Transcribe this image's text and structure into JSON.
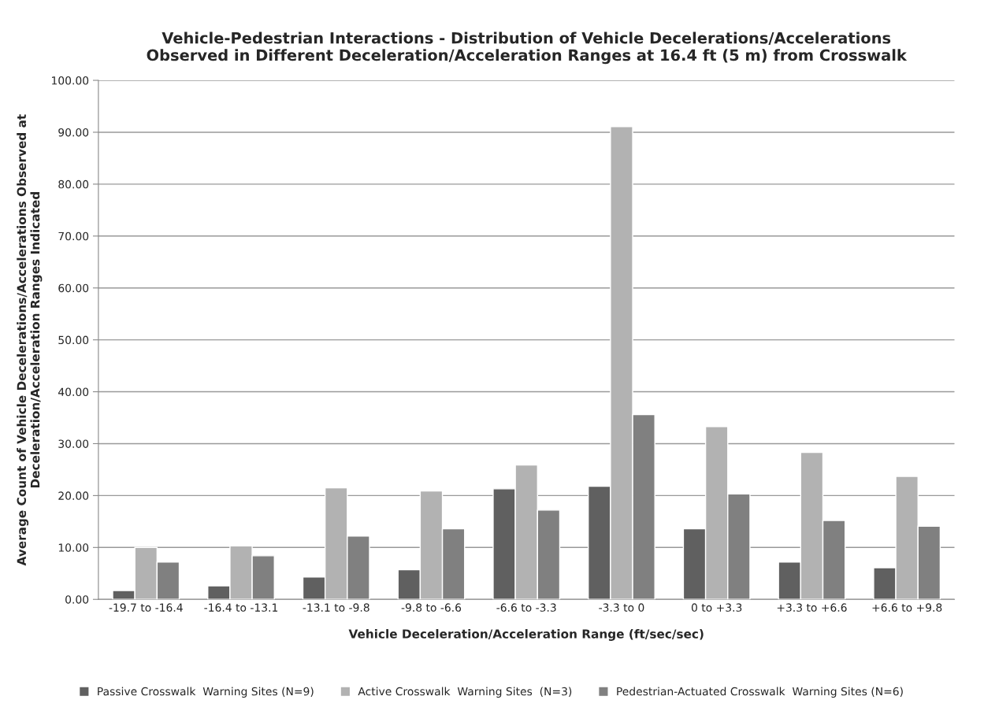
{
  "chart_data": {
    "type": "bar",
    "title": "Vehicle-Pedestrian Interactions - Distribution of Vehicle Decelerations/Accelerations\nObserved in Different Deceleration/Acceleration Ranges at 16.4 ft (5 m) from Crosswalk",
    "xlabel": "Vehicle Deceleration/Acceleration Range (ft/sec/sec)",
    "ylabel": "Average Count of Vehicle Decelerations/Accelerations Observed at\nDeceleration/Acceleration Ranges Indicated",
    "categories": [
      "-19.7 to -16.4",
      "-16.4 to -13.1",
      "-13.1 to -9.8",
      "-9.8 to -6.6",
      "-6.6 to -3.3",
      "-3.3 to 0",
      "0 to +3.3",
      "+3.3 to +6.6",
      "+6.6 to +9.8"
    ],
    "series": [
      {
        "name": "Passive Crosswalk  Warning Sites (N=9)",
        "color": "#606060",
        "values": [
          1.7,
          2.6,
          4.3,
          5.7,
          21.3,
          21.8,
          13.6,
          7.2,
          6.1
        ]
      },
      {
        "name": "Active Crosswalk  Warning Sites  (N=3)",
        "color": "#b2b2b2",
        "values": [
          10.0,
          10.3,
          21.5,
          20.9,
          25.9,
          91.1,
          33.3,
          28.3,
          23.7
        ]
      },
      {
        "name": "Pedestrian-Actuated Crosswalk  Warning Sites (N=6)",
        "color": "#808080",
        "values": [
          7.2,
          8.4,
          12.2,
          13.6,
          17.2,
          35.6,
          20.3,
          15.2,
          14.1
        ]
      }
    ],
    "ylim": [
      0,
      100
    ],
    "yticks": [
      {
        "value": 0,
        "label": "0.00"
      },
      {
        "value": 10,
        "label": "10.00"
      },
      {
        "value": 20,
        "label": "20.00"
      },
      {
        "value": 30,
        "label": "30.00"
      },
      {
        "value": 40,
        "label": "40.00"
      },
      {
        "value": 50,
        "label": "50.00"
      },
      {
        "value": 60,
        "label": "60.00"
      },
      {
        "value": 70,
        "label": "70.00"
      },
      {
        "value": 80,
        "label": "80.00"
      },
      {
        "value": 90,
        "label": "90.00"
      },
      {
        "value": 100,
        "label": "100.00"
      }
    ],
    "grid": "y",
    "legend": "bottom"
  }
}
